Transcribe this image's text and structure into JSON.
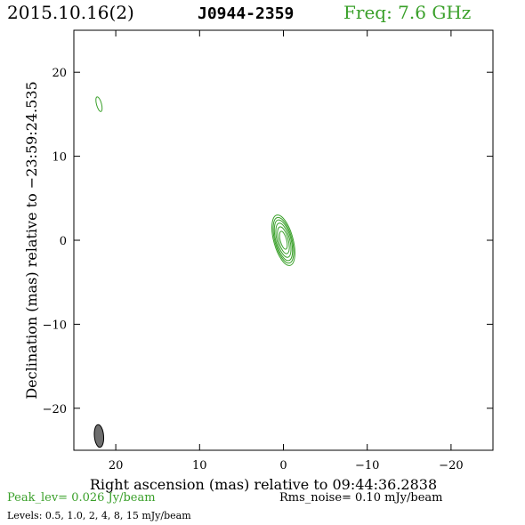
{
  "header": {
    "date": "2015.10.16(2)",
    "source": "J0944-2359",
    "freq": "Freq: 7.6 GHz"
  },
  "footer": {
    "peak": "Peak_lev=  0.026 Jy/beam",
    "rms": "Rms_noise= 0.10 mJy/beam",
    "levels": "Levels: 0.5, 1.0,   2,   4,   8,  15 mJy/beam"
  },
  "colors": {
    "contour": "#3aa02a",
    "beam": "#6e6e6e",
    "axes": "#000000"
  },
  "chart_data": {
    "type": "contour",
    "xlabel": "Right ascension (mas) relative to 09:44:36.2838",
    "ylabel": "Declination (mas) relative to −23:59:24.535",
    "xlim": [
      25,
      -25
    ],
    "ylim": [
      -25,
      25
    ],
    "x_ticks": [
      20,
      10,
      0,
      -10,
      -20
    ],
    "x_tick_labels": [
      "20",
      "10",
      "0",
      "−10",
      "−20"
    ],
    "y_ticks": [
      -20,
      -10,
      0,
      10,
      20
    ],
    "y_tick_labels": [
      "−20",
      "−10",
      "0",
      "10",
      "20"
    ],
    "contour_levels_mJy_per_beam": [
      0.5,
      1.0,
      2,
      4,
      8,
      15
    ],
    "peak_Jy_per_beam": 0.026,
    "rms_noise_mJy_per_beam": 0.1,
    "core_center": [
      0,
      0
    ],
    "core_contours": [
      {
        "level": 0.5,
        "a": 3.1,
        "b": 1.15
      },
      {
        "level": 1.0,
        "a": 2.8,
        "b": 1.02
      },
      {
        "level": 2,
        "a": 2.5,
        "b": 0.9
      },
      {
        "level": 4,
        "a": 2.1,
        "b": 0.75
      },
      {
        "level": 8,
        "a": 1.65,
        "b": 0.58
      },
      {
        "level": 15,
        "a": 1.1,
        "b": 0.38
      }
    ],
    "core_pa_deg": 15,
    "secondary_feature": {
      "x": 22,
      "y": 16.2,
      "a": 0.9,
      "b": 0.3,
      "pa_deg": 15
    },
    "beam": {
      "x": 22,
      "y": -23.3,
      "a": 1.35,
      "b": 0.55,
      "pa_deg": 5
    }
  }
}
